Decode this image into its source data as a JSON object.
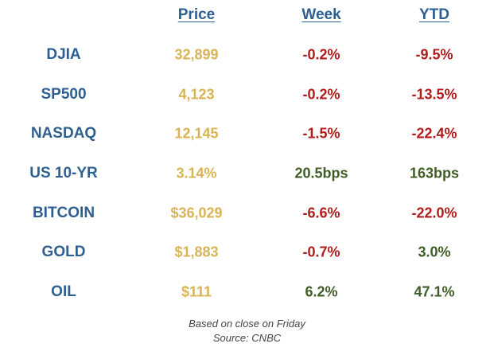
{
  "header": {
    "price": "Price",
    "week": "Week",
    "ytd": "YTD"
  },
  "rows": [
    {
      "name": "DJIA",
      "price": "32,899",
      "week": "-0.2%",
      "week_dir": "neg",
      "ytd": "-9.5%",
      "ytd_dir": "neg"
    },
    {
      "name": "SP500",
      "price": "4,123",
      "week": "-0.2%",
      "week_dir": "neg",
      "ytd": "-13.5%",
      "ytd_dir": "neg"
    },
    {
      "name": "NASDAQ",
      "price": "12,145",
      "week": "-1.5%",
      "week_dir": "neg",
      "ytd": "-22.4%",
      "ytd_dir": "neg"
    },
    {
      "name": "US 10-YR",
      "price": "3.14%",
      "week": "20.5bps",
      "week_dir": "pos",
      "ytd": "163bps",
      "ytd_dir": "pos"
    },
    {
      "name": "BITCOIN",
      "price": "$36,029",
      "week": "-6.6%",
      "week_dir": "neg",
      "ytd": "-22.0%",
      "ytd_dir": "neg"
    },
    {
      "name": "GOLD",
      "price": "$1,883",
      "week": "-0.7%",
      "week_dir": "neg",
      "ytd": "3.0%",
      "ytd_dir": "pos"
    },
    {
      "name": "OIL",
      "price": "$111",
      "week": "6.2%",
      "week_dir": "pos",
      "ytd": "47.1%",
      "ytd_dir": "pos"
    }
  ],
  "footer": {
    "line1": "Based on close on Friday",
    "line2": "Source: CNBC"
  },
  "colors": {
    "name": "#2e5f91",
    "price": "#d8b455",
    "negative": "#b01c1c",
    "positive": "#3f5d25"
  }
}
